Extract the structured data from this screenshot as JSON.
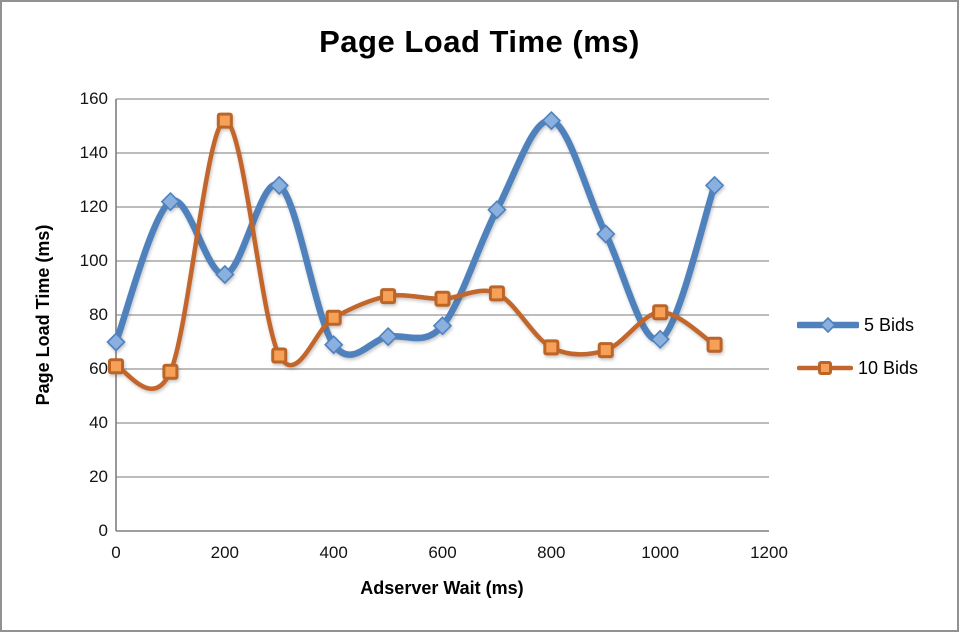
{
  "title": "Page Load Time (ms)",
  "chart_data": {
    "type": "line",
    "title": "Page Load Time (ms)",
    "xlabel": "Adserver Wait (ms)",
    "ylabel": "Page Load Time (ms)",
    "x": [
      0,
      100,
      200,
      300,
      400,
      500,
      600,
      700,
      800,
      900,
      1000,
      1100
    ],
    "series": [
      {
        "name": "5 Bids",
        "values": [
          70,
          122,
          95,
          128,
          69,
          72,
          76,
          119,
          152,
          110,
          71,
          128
        ],
        "line_color": "#4F81BD",
        "line_width": 6.5,
        "marker": "diamond",
        "marker_fill": "#8AB0E0",
        "marker_stroke": "#4F81BD"
      },
      {
        "name": "10 Bids",
        "values": [
          61,
          59,
          152,
          65,
          79,
          87,
          86,
          88,
          68,
          67,
          81,
          69
        ],
        "line_color": "#C2662C",
        "line_width": 4.5,
        "marker": "square",
        "marker_fill": "#F7A158",
        "marker_stroke": "#BD6526"
      }
    ],
    "xlim": [
      0,
      1200
    ],
    "ylim": [
      0,
      160
    ],
    "x_ticks": [
      0,
      200,
      400,
      600,
      800,
      1000,
      1200
    ],
    "y_ticks": [
      0,
      20,
      40,
      60,
      80,
      100,
      120,
      140,
      160
    ],
    "grid": "horizontal",
    "gridline_color": "#A6A6A6",
    "axis_color": "#7F7F7F",
    "legend_position": "right",
    "smooth": true
  }
}
